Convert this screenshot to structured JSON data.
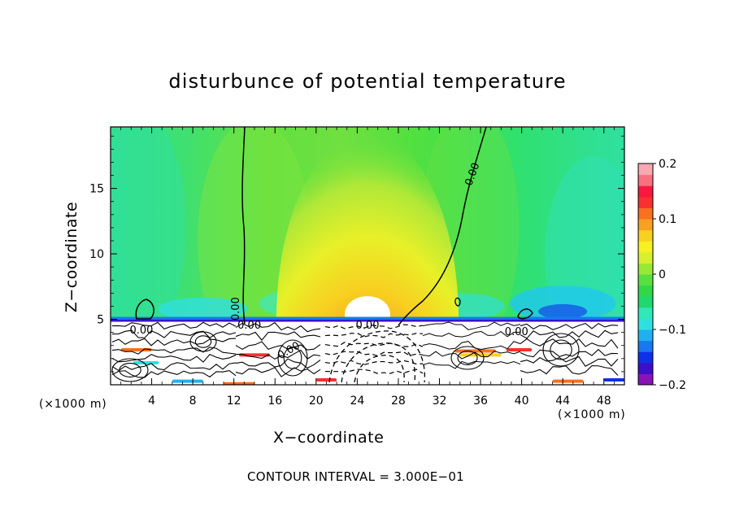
{
  "chart_data": {
    "type": "heatmap",
    "title": "disturbunce of potential temperature",
    "xlabel": "X−coordinate",
    "ylabel": "Z−coordinate",
    "x_unit": "(×1000 m)",
    "z_unit": "(×1000 m)",
    "footer": "CONTOUR INTERVAL = 3.000E−01",
    "xlim": [
      0,
      50
    ],
    "ylim": [
      0,
      19.7
    ],
    "x_ticks": [
      4,
      8,
      12,
      16,
      20,
      24,
      28,
      32,
      36,
      40,
      44,
      48
    ],
    "y_ticks": [
      5,
      10,
      15
    ],
    "colorbar": {
      "range": [
        -0.2,
        0.2
      ],
      "ticks": [
        {
          "value": 0.2,
          "label": "0.2"
        },
        {
          "value": 0.1,
          "label": "0.1"
        },
        {
          "value": 0.0,
          "label": "0"
        },
        {
          "value": -0.1,
          "label": "−0.1"
        },
        {
          "value": -0.2,
          "label": "−0.2"
        }
      ],
      "colors": [
        "#8a12b8",
        "#3a10c8",
        "#1030e8",
        "#1878f0",
        "#20b0f0",
        "#30e0e0",
        "#30e8b8",
        "#20d870",
        "#30d848",
        "#58e040",
        "#98e838",
        "#d8f030",
        "#f8f020",
        "#f8d020",
        "#f8a020",
        "#f87020",
        "#f83030",
        "#f81840",
        "#f87080",
        "#f8a8b0"
      ]
    },
    "contour_labels": [
      {
        "text": "0.00",
        "x": 12.5,
        "z": 5.8,
        "angle": -90
      },
      {
        "text": "0.00",
        "x": 35.5,
        "z": 16.0,
        "angle": -70
      },
      {
        "text": "0.00",
        "x": 13.5,
        "z": 4.3,
        "angle": 0
      },
      {
        "text": "0.00",
        "x": 25.0,
        "z": 4.3,
        "angle": 0
      },
      {
        "text": "0.00",
        "x": 3.0,
        "z": 3.9,
        "angle": 0
      },
      {
        "text": "0.00",
        "x": 17.5,
        "z": 2.4,
        "angle": -30
      },
      {
        "text": "0.00",
        "x": 39.5,
        "z": 3.8,
        "angle": 0
      }
    ],
    "features": [
      {
        "name": "warm anomaly core",
        "x": 25,
        "z": 5.5,
        "value": 0.2
      },
      {
        "name": "cold layer",
        "z": 5.0,
        "value": -0.12
      }
    ]
  }
}
